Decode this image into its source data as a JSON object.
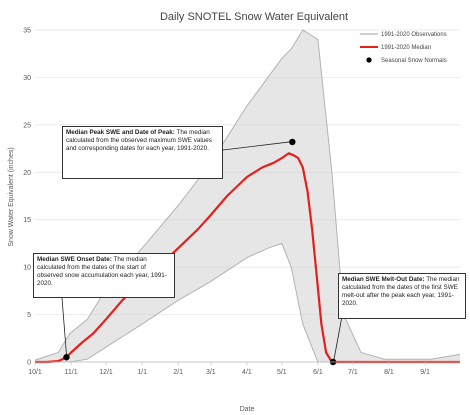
{
  "chart_data": {
    "type": "line",
    "title": "Daily SNOTEL Snow Water Equivalent",
    "xlabel": "Date",
    "ylabel": "Snow Water Equivalent (inches)",
    "x_tick_labels": [
      "10/1",
      "11/1",
      "12/1",
      "1/1",
      "2/1",
      "3/1",
      "4/1",
      "5/1",
      "6/1",
      "7/1",
      "8/1",
      "9/1"
    ],
    "x_tick_days": [
      0,
      31,
      61,
      92,
      123,
      151,
      182,
      212,
      243,
      273,
      304,
      335
    ],
    "xlim_days": [
      0,
      365
    ],
    "ylim": [
      0,
      35
    ],
    "y_ticks": [
      0,
      5,
      10,
      15,
      20,
      25,
      30,
      35
    ],
    "grid": true,
    "legend_position": "top-right",
    "legend": [
      {
        "name": "1991-2020 Observations",
        "color": "#b3b3b3",
        "kind": "line"
      },
      {
        "name": "1991-2020 Median",
        "color": "#e3211c",
        "kind": "line"
      },
      {
        "name": "Seasonal Snow Normals",
        "color": "#000000",
        "kind": "dot"
      }
    ],
    "observations_envelope": {
      "days": [
        0,
        20,
        30,
        45,
        60,
        92,
        123,
        151,
        182,
        200,
        212,
        220,
        230,
        243,
        255,
        265,
        280,
        300,
        340,
        365
      ],
      "min": [
        0,
        0,
        0,
        0.3,
        1.5,
        4,
        6.5,
        8.5,
        11,
        12,
        12.5,
        10,
        4,
        0,
        0,
        0,
        0,
        0,
        0,
        0
      ],
      "max": [
        0.2,
        1,
        3,
        4.5,
        7.5,
        12,
        16.5,
        21,
        27,
        30,
        32,
        33,
        35,
        34,
        20,
        5,
        1,
        0.3,
        0.3,
        0.8
      ]
    },
    "series": [
      {
        "name": "1991-2020 Median",
        "color": "#e3211c",
        "x_days": [
          0,
          10,
          20,
          27,
          31,
          40,
          50,
          61,
          75,
          92,
          110,
          123,
          140,
          151,
          165,
          182,
          195,
          205,
          212,
          218,
          222,
          226,
          230,
          234,
          238,
          242,
          246,
          250,
          255,
          260,
          275,
          300,
          330,
          365
        ],
        "y": [
          0,
          0,
          0.1,
          0.5,
          1,
          2,
          3,
          4.5,
          6.5,
          8.5,
          10.5,
          12,
          14,
          15.5,
          17.5,
          19.5,
          20.5,
          21,
          21.5,
          22,
          21.8,
          21.5,
          20.5,
          18,
          14,
          9,
          4,
          1,
          0,
          0,
          0,
          0,
          0,
          0
        ]
      }
    ],
    "normals": [
      {
        "label": "Median SWE Onset Date",
        "x_day": 27,
        "y": 0.5
      },
      {
        "label": "Median Peak SWE",
        "x_day": 221,
        "y": 23.2
      },
      {
        "label": "Median SWE Melt-Out Date",
        "x_day": 256,
        "y": 0
      }
    ],
    "annotations": [
      {
        "heading": "Median Peak SWE and Date of Peak:",
        "text": "The median calculated from the observed maximum SWE values and corresponding dates for each year, 1991-2020."
      },
      {
        "heading": "Median SWE Onset Date:",
        "text": "The median calculated from the dates of the start of observed snow accumulation each year, 1991-2020."
      },
      {
        "heading": "Median SWE Melt-Out Date:",
        "text": "The median calculated from the dates of the first SWE melt-out after the peak each year, 1991-2020."
      }
    ]
  }
}
